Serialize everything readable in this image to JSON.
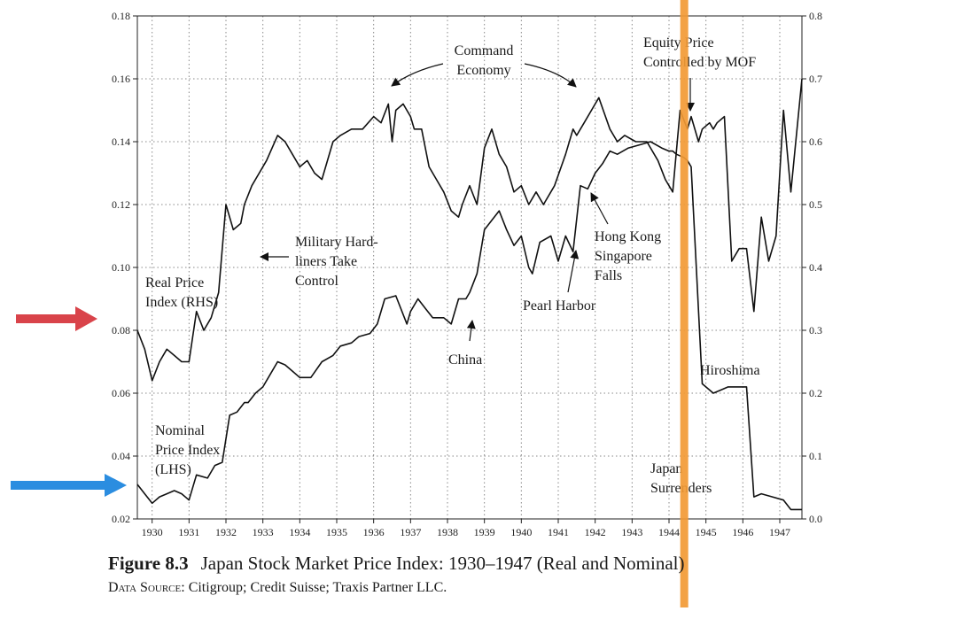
{
  "figure": {
    "number": "Figure 8.3",
    "title": "Japan Stock Market Price Index: 1930–1947 (Real and Nominal)",
    "source_label": "Data Source:",
    "source_text": "Citigroup; Credit Suisse; Traxis Partner LLC."
  },
  "chart_data": {
    "type": "line",
    "title": "",
    "xlabel": "",
    "ylabel": "",
    "x_ticks": [
      "1930",
      "1931",
      "1932",
      "1933",
      "1934",
      "1935",
      "1936",
      "1937",
      "1938",
      "1939",
      "1940",
      "1941",
      "1942",
      "1943",
      "1944",
      "1945",
      "1946",
      "1947"
    ],
    "xlim": [
      1929.6,
      1947.6
    ],
    "y_left_ticks": [
      "0.02",
      "0.04",
      "0.06",
      "0.08",
      "0.10",
      "0.12",
      "0.14",
      "0.16",
      "0.18"
    ],
    "y_left_range": [
      0.02,
      0.18
    ],
    "y_right_ticks": [
      "0.0",
      "0.1",
      "0.2",
      "0.3",
      "0.4",
      "0.5",
      "0.6",
      "0.7",
      "0.8"
    ],
    "y_right_range": [
      0.0,
      0.8
    ],
    "grid": true,
    "series": [
      {
        "name": "Nominal Price Index (LHS)",
        "axis": "left",
        "x": [
          1929.6,
          1929.8,
          1930.0,
          1930.2,
          1930.4,
          1930.6,
          1930.8,
          1931.0,
          1931.2,
          1931.5,
          1931.7,
          1931.9,
          1932.1,
          1932.3,
          1932.5,
          1932.6,
          1932.8,
          1933.0,
          1933.2,
          1933.4,
          1933.6,
          1933.8,
          1934.0,
          1934.3,
          1934.6,
          1934.9,
          1935.1,
          1935.4,
          1935.6,
          1935.9,
          1936.1,
          1936.3,
          1936.6,
          1936.9,
          1937.0,
          1937.2,
          1937.4,
          1937.6,
          1937.9,
          1938.1,
          1938.3,
          1938.5,
          1938.6,
          1938.8,
          1939.0,
          1939.2,
          1939.4,
          1939.6,
          1939.8,
          1940.0,
          1940.2,
          1940.3,
          1940.5,
          1940.8,
          1941.0,
          1941.2,
          1941.4,
          1941.6,
          1941.8,
          1942.0,
          1942.2,
          1942.4,
          1942.6,
          1942.9,
          1943.2,
          1943.5,
          1943.8,
          1944.0,
          1944.1,
          1944.2,
          1944.4,
          1944.5,
          1944.6,
          1944.9,
          1945.2,
          1945.4,
          1945.6,
          1945.8,
          1946.1,
          1946.3,
          1946.5,
          1946.8,
          1947.1,
          1947.3,
          1947.6
        ],
        "values": [
          0.031,
          0.028,
          0.025,
          0.027,
          0.028,
          0.029,
          0.028,
          0.026,
          0.034,
          0.033,
          0.037,
          0.038,
          0.053,
          0.054,
          0.057,
          0.057,
          0.06,
          0.062,
          0.066,
          0.07,
          0.069,
          0.067,
          0.065,
          0.065,
          0.07,
          0.072,
          0.075,
          0.076,
          0.078,
          0.079,
          0.082,
          0.09,
          0.091,
          0.082,
          0.086,
          0.09,
          0.087,
          0.084,
          0.084,
          0.082,
          0.09,
          0.09,
          0.092,
          0.098,
          0.112,
          0.115,
          0.118,
          0.112,
          0.107,
          0.11,
          0.1,
          0.098,
          0.108,
          0.11,
          0.102,
          0.11,
          0.105,
          0.126,
          0.125,
          0.13,
          0.133,
          0.137,
          0.136,
          0.138,
          0.139,
          0.14,
          0.138,
          0.137,
          0.137,
          0.136,
          0.135,
          0.134,
          0.132,
          0.063,
          0.06,
          0.061,
          0.062,
          0.062,
          0.062,
          0.027,
          0.028,
          0.027,
          0.026,
          0.023,
          0.023
        ]
      },
      {
        "name": "Real Price Index (RHS)",
        "axis": "right",
        "x": [
          1929.6,
          1929.8,
          1930.0,
          1930.2,
          1930.4,
          1930.6,
          1930.8,
          1931.0,
          1931.2,
          1931.4,
          1931.6,
          1931.8,
          1932.0,
          1932.2,
          1932.4,
          1932.5,
          1932.7,
          1932.9,
          1933.1,
          1933.4,
          1933.6,
          1933.8,
          1934.0,
          1934.2,
          1934.4,
          1934.6,
          1934.9,
          1935.1,
          1935.4,
          1935.7,
          1936.0,
          1936.2,
          1936.4,
          1936.5,
          1936.6,
          1936.8,
          1937.0,
          1937.1,
          1937.3,
          1937.5,
          1937.7,
          1937.9,
          1938.1,
          1938.3,
          1938.4,
          1938.6,
          1938.8,
          1939.0,
          1939.2,
          1939.4,
          1939.6,
          1939.8,
          1940.0,
          1940.2,
          1940.4,
          1940.6,
          1940.9,
          1941.2,
          1941.4,
          1941.5,
          1941.7,
          1941.9,
          1942.1,
          1942.4,
          1942.6,
          1942.8,
          1943.1,
          1943.4,
          1943.7,
          1943.9,
          1944.1,
          1944.3,
          1944.5,
          1944.6,
          1944.8,
          1944.9,
          1945.1,
          1945.2,
          1945.3,
          1945.5,
          1945.7,
          1945.9,
          1946.1,
          1946.3,
          1946.5,
          1946.7,
          1946.9,
          1947.1,
          1947.3,
          1947.6
        ],
        "values": [
          0.3,
          0.27,
          0.22,
          0.25,
          0.27,
          0.26,
          0.25,
          0.25,
          0.33,
          0.3,
          0.32,
          0.36,
          0.5,
          0.46,
          0.47,
          0.5,
          0.53,
          0.55,
          0.57,
          0.61,
          0.6,
          0.58,
          0.56,
          0.57,
          0.55,
          0.54,
          0.6,
          0.61,
          0.62,
          0.62,
          0.64,
          0.63,
          0.66,
          0.6,
          0.65,
          0.66,
          0.64,
          0.62,
          0.62,
          0.56,
          0.54,
          0.52,
          0.49,
          0.48,
          0.5,
          0.53,
          0.5,
          0.59,
          0.62,
          0.58,
          0.56,
          0.52,
          0.53,
          0.5,
          0.52,
          0.5,
          0.53,
          0.58,
          0.62,
          0.61,
          0.63,
          0.65,
          0.67,
          0.62,
          0.6,
          0.61,
          0.6,
          0.6,
          0.57,
          0.54,
          0.52,
          0.65,
          0.62,
          0.64,
          0.6,
          0.62,
          0.63,
          0.62,
          0.63,
          0.64,
          0.41,
          0.43,
          0.43,
          0.33,
          0.48,
          0.41,
          0.45,
          0.65,
          0.52,
          0.7
        ]
      }
    ],
    "annotations": [
      {
        "lines": [
          "Command",
          "Economy"
        ]
      },
      {
        "lines": [
          "Equity Price",
          "Controlled by MOF"
        ]
      },
      {
        "lines": [
          "Military Hard-",
          "liners Take",
          "Control"
        ]
      },
      {
        "lines": [
          "Real Price",
          "Index (RHS)"
        ]
      },
      {
        "lines": [
          "Hong Kong",
          "Singapore",
          "Falls"
        ]
      },
      {
        "lines": [
          "Pearl Harbor"
        ]
      },
      {
        "lines": [
          "China"
        ]
      },
      {
        "lines": [
          "Hiroshima"
        ]
      },
      {
        "lines": [
          "Nominal",
          "Price Index",
          "(LHS)"
        ]
      },
      {
        "lines": [
          "Japan",
          "Surrenders"
        ]
      }
    ],
    "overlays": {
      "red_arrow_color": "#d9434a",
      "blue_arrow_color": "#2b8de0",
      "vertical_marker_color": "#f29a35",
      "vertical_marker_year": 1944.4
    }
  }
}
